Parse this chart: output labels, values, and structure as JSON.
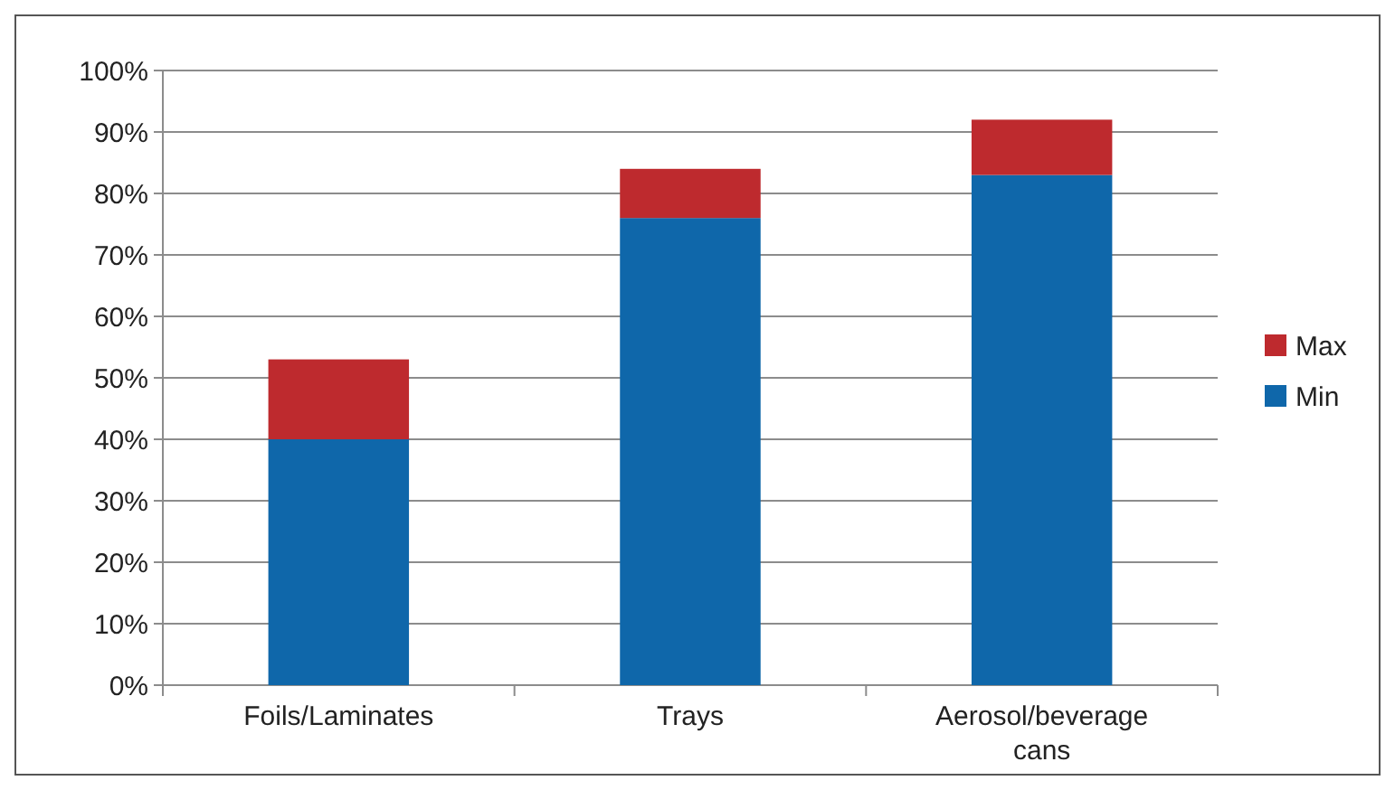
{
  "chart_data": {
    "type": "bar",
    "stacked": true,
    "categories": [
      "Foils/Laminates",
      "Trays",
      "Aerosol/beverage cans"
    ],
    "series": [
      {
        "name": "Min",
        "color": "#0f67aa",
        "values": [
          40,
          76,
          83
        ]
      },
      {
        "name": "Max",
        "color": "#be2a2e",
        "values": [
          13,
          8,
          9
        ]
      }
    ],
    "ylim": [
      0,
      100
    ],
    "yticks": [
      {
        "value": 0,
        "label": "0%"
      },
      {
        "value": 10,
        "label": "10%"
      },
      {
        "value": 20,
        "label": "20%"
      },
      {
        "value": 30,
        "label": "30%"
      },
      {
        "value": 40,
        "label": "40%"
      },
      {
        "value": 50,
        "label": "50%"
      },
      {
        "value": 60,
        "label": "60%"
      },
      {
        "value": 70,
        "label": "70%"
      },
      {
        "value": 80,
        "label": "80%"
      },
      {
        "value": 90,
        "label": "90%"
      },
      {
        "value": 100,
        "label": "100%"
      }
    ],
    "grid": "y",
    "legend": "right"
  }
}
